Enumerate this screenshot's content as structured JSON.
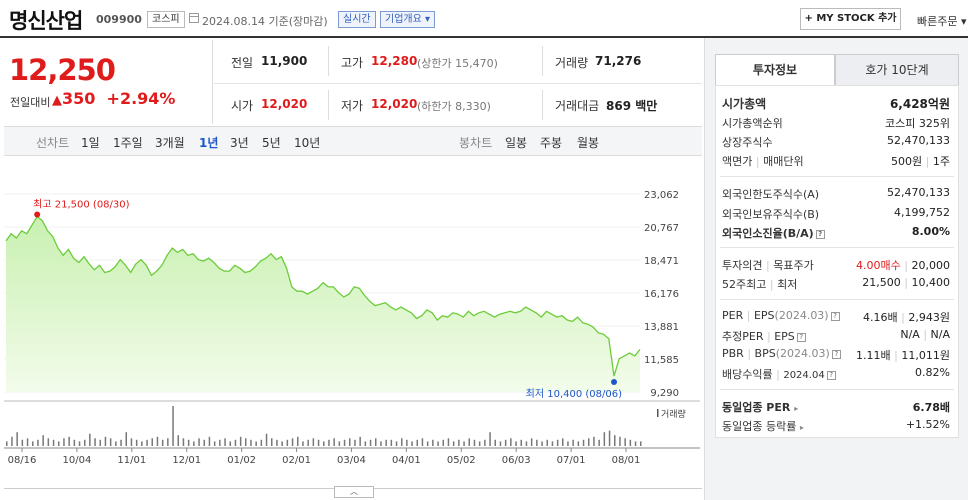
{
  "header": {
    "stock_name": "명신산업",
    "stock_code": "009900",
    "market": "코스피",
    "date": "2024.08.14",
    "date_suffix": "기준(장마감)",
    "realtime_label": "실시간",
    "overview_label": "기업개요",
    "mystock_label": "+ MY STOCK 추가",
    "quick_order_label": "빠른주문"
  },
  "summary": {
    "price": "12,250",
    "change_label": "전일대비",
    "change_value": "350",
    "change_rate": "+2.94%",
    "prev_close_label": "전일",
    "prev_close": "11,900",
    "high_label": "고가",
    "high": "12,280",
    "upper_limit": "(상한가 15,470)",
    "volume_label": "거래량",
    "volume": "71,276",
    "open_label": "시가",
    "open": "12,020",
    "low_label": "저가",
    "low": "12,020",
    "lower_limit": "(하한가 8,330)",
    "amount_label": "거래대금",
    "amount": "869",
    "amount_unit": "백만"
  },
  "periods": {
    "line_label": "선차트",
    "line_items": [
      "1일",
      "1주일",
      "3개월",
      "1년",
      "3년",
      "5년",
      "10년"
    ],
    "selected": "1년",
    "candle_label": "봉차트",
    "candle_items": [
      "일봉",
      "주봉",
      "월봉"
    ]
  },
  "chart_data": {
    "type": "area",
    "x_labels": [
      "08/16",
      "10/04",
      "11/01",
      "12/01",
      "01/02",
      "02/01",
      "03/04",
      "04/01",
      "05/02",
      "06/03",
      "07/01",
      "08/01"
    ],
    "y_ticks": [
      "23,062",
      "20,767",
      "18,471",
      "16,176",
      "13,881",
      "11,585",
      "9,290"
    ],
    "ylim": [
      9290,
      23062
    ],
    "max_label": "최고 21,500 (08/30)",
    "min_label": "최저 10,400 (08/06)",
    "volume_label": "거래량",
    "prices": [
      19800,
      20300,
      20000,
      20500,
      20300,
      20900,
      21500,
      21200,
      20500,
      20100,
      19300,
      18800,
      19200,
      18600,
      18300,
      18700,
      18200,
      17800,
      18100,
      17600,
      17700,
      18000,
      18500,
      18100,
      17600,
      18200,
      18500,
      18100,
      17400,
      17700,
      18100,
      18800,
      19300,
      19000,
      19200,
      18800,
      18900,
      18500,
      18400,
      18600,
      18300,
      17900,
      17700,
      17700,
      18100,
      17900,
      17600,
      17700,
      18000,
      18400,
      18600,
      18900,
      18500,
      18700,
      17900,
      16600,
      16300,
      16300,
      16100,
      16300,
      16500,
      16900,
      16600,
      16600,
      16200,
      15900,
      16100,
      16600,
      16500,
      16000,
      15600,
      15300,
      15400,
      15500,
      15200,
      15000,
      15200,
      15000,
      14800,
      14400,
      14600,
      15000,
      14800,
      14300,
      14600,
      14500,
      14800,
      14700,
      14500,
      14900,
      14600,
      14800,
      14900,
      14700,
      14500,
      14700,
      14800,
      14900,
      14800,
      14900,
      15200,
      15000,
      14800,
      14500,
      14900,
      14700,
      14500,
      14600,
      14300,
      14200,
      14500,
      14100,
      14000,
      13800,
      13400,
      13300,
      13000,
      10400,
      11600,
      11800,
      12000,
      11800,
      12250
    ],
    "volumes": [
      3,
      6,
      9,
      4,
      5,
      3,
      4,
      7,
      5,
      4,
      3,
      5,
      6,
      4,
      3,
      4,
      8,
      5,
      4,
      6,
      5,
      3,
      4,
      9,
      5,
      4,
      3,
      4,
      5,
      6,
      4,
      5,
      26,
      7,
      5,
      4,
      3,
      5,
      4,
      6,
      3,
      4,
      5,
      3,
      4,
      6,
      5,
      4,
      3,
      4,
      8,
      5,
      4,
      3,
      4,
      5,
      6,
      3,
      4,
      5,
      4,
      3,
      4,
      5,
      3,
      4,
      5,
      4,
      6,
      3,
      4,
      5,
      3,
      4,
      4,
      3,
      5,
      4,
      3,
      4,
      5,
      3,
      4,
      3,
      4,
      5,
      3,
      4,
      3,
      5,
      4,
      3,
      4,
      9,
      4,
      3,
      4,
      5,
      3,
      4,
      3,
      5,
      4,
      3,
      4,
      3,
      4,
      5,
      3,
      4,
      3,
      4,
      5,
      6,
      4,
      9,
      10,
      7,
      6,
      5,
      4,
      3,
      3
    ]
  },
  "right_panel": {
    "tab_info": "투자정보",
    "tab_quote": "호가 10단계",
    "market_cap_label": "시가총액",
    "market_cap": "6,428억원",
    "market_cap_rank_label": "시가총액순위",
    "market_cap_rank": "코스피 325위",
    "shares_label": "상장주식수",
    "shares": "52,470,133",
    "par_label": "액면가",
    "trade_unit_label": "매매단위",
    "par": "500원",
    "trade_unit": "1주",
    "foreign_limit_label": "외국인한도주식수(A)",
    "foreign_limit": "52,470,133",
    "foreign_hold_label": "외국인보유주식수(B)",
    "foreign_hold": "4,199,752",
    "foreign_rate_label": "외국인소진율(B/A)",
    "foreign_rate": "8.00%",
    "opinion_label": "투자의견",
    "target_label": "목표주가",
    "opinion": "4.00매수",
    "target": "20,000",
    "w52_label": "52주최고",
    "w52_low_label": "최저",
    "w52_high": "21,500",
    "w52_low": "10,400",
    "per_label": "PER",
    "eps_label": "EPS",
    "eps_date": "(2024.03)",
    "per": "4.16배",
    "eps": "2,943원",
    "est_per_label": "추정PER",
    "est_eps_label": "EPS",
    "est_per": "N/A",
    "est_eps": "N/A",
    "pbr_label": "PBR",
    "bps_label": "BPS",
    "bps_date": "(2024.03)",
    "pbr": "1.11배",
    "bps": "11,011원",
    "div_label": "배당수익률",
    "div_date": "2024.04",
    "div": "0.82%",
    "sector_per_label": "동일업종 PER",
    "sector_per": "6.78배",
    "sector_rate_label": "동일업종 등락률",
    "sector_rate": "+1.52%"
  }
}
